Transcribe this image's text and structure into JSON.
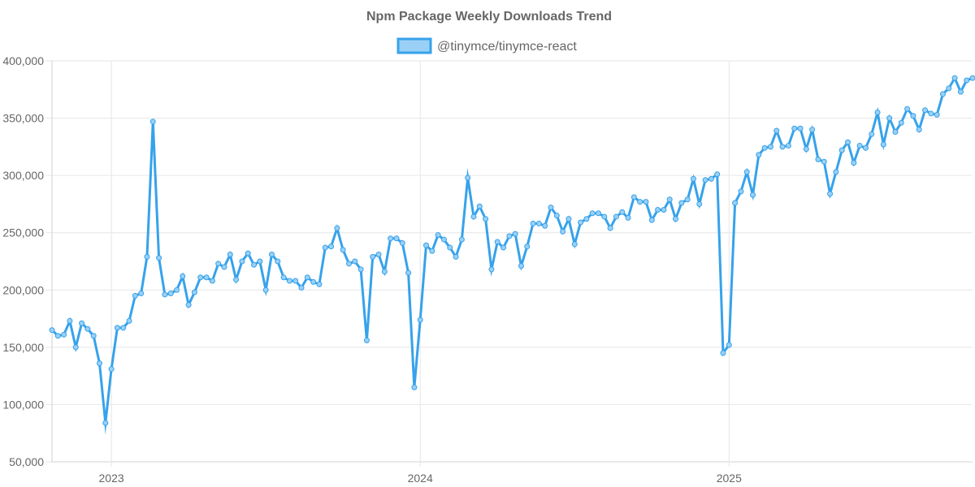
{
  "chart_data": {
    "type": "line",
    "title": "Npm Package Weekly Downloads Trend",
    "xlabel": "",
    "ylabel": "",
    "ylim": [
      50000,
      400000
    ],
    "yticks": [
      50000,
      100000,
      150000,
      200000,
      250000,
      300000,
      350000,
      400000
    ],
    "ytick_labels": [
      "50,000",
      "100,000",
      "150,000",
      "200,000",
      "250,000",
      "300,000",
      "350,000",
      "400,000"
    ],
    "xrange_weeks": [
      -10,
      145
    ],
    "xticks": [
      {
        "week": 0,
        "label": "2023"
      },
      {
        "week": 52,
        "label": "2024"
      },
      {
        "week": 104,
        "label": "2025"
      }
    ],
    "grid": true,
    "legend_position": "top-center",
    "series": [
      {
        "name": "@tinymce/tinymce-react",
        "color": "#36A2EB",
        "fill": "#9AD0F5",
        "start_week": -10,
        "values": [
          165000,
          160000,
          161000,
          173000,
          150000,
          171000,
          166000,
          160000,
          136000,
          84000,
          131000,
          167000,
          167000,
          173000,
          195000,
          197000,
          229000,
          347000,
          228000,
          196000,
          197000,
          200000,
          212000,
          187000,
          198000,
          211000,
          211000,
          208000,
          223000,
          220000,
          231000,
          209000,
          225000,
          232000,
          222000,
          225000,
          200000,
          231000,
          225000,
          211000,
          208000,
          208000,
          202000,
          211000,
          207000,
          205000,
          237000,
          238000,
          254000,
          235000,
          223000,
          225000,
          218000,
          156000,
          229000,
          231000,
          216000,
          245000,
          245000,
          241000,
          215000,
          115000,
          174000,
          239000,
          234000,
          248000,
          244000,
          237000,
          229000,
          244000,
          298000,
          264000,
          273000,
          262000,
          218000,
          242000,
          237000,
          247000,
          249000,
          221000,
          238000,
          258000,
          258000,
          256000,
          272000,
          265000,
          251000,
          262000,
          240000,
          259000,
          262000,
          267000,
          267000,
          264000,
          254000,
          264000,
          268000,
          263000,
          281000,
          277000,
          277000,
          261000,
          270000,
          270000,
          279000,
          262000,
          276000,
          279000,
          297000,
          275000,
          296000,
          297000,
          301000,
          145000,
          152000,
          276000,
          286000,
          303000,
          283000,
          318000,
          324000,
          325000,
          339000,
          325000,
          326000,
          341000,
          341000,
          323000,
          340000,
          314000,
          312000,
          284000,
          303000,
          322000,
          329000,
          311000,
          326000,
          324000,
          336000,
          355000,
          327000,
          350000,
          338000,
          346000,
          358000,
          352000,
          340000,
          357000,
          354000,
          353000,
          371000,
          376000,
          385000,
          373000,
          383000,
          385000
        ]
      }
    ]
  }
}
